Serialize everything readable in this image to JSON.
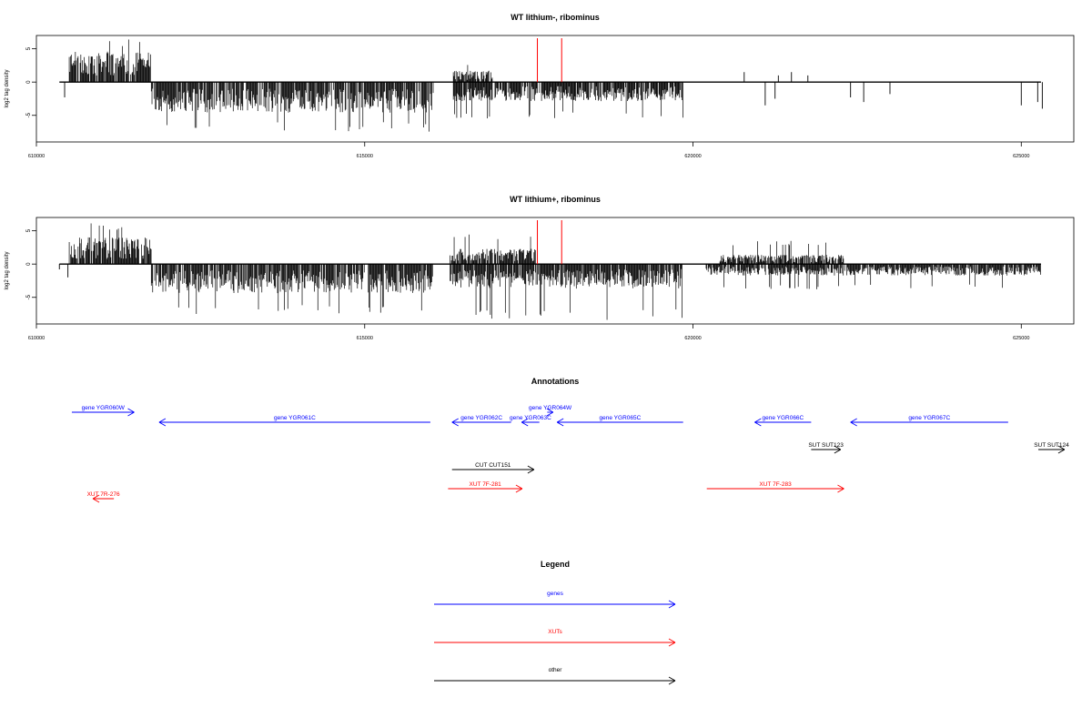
{
  "panel1_title": "WT lithium-, ribominus",
  "panel2_title": "WT lithium+, ribominus",
  "annotations_title": "Annotations",
  "legend_title": "Legend",
  "ylabel": "log2 tag density",
  "colors": {
    "gene": "#0000ff",
    "xut": "#ff0000",
    "other": "#000000",
    "marker": "#ff0000"
  },
  "chart_data": [
    {
      "type": "bar",
      "title": "WT lithium-, ribominus",
      "xlabel": "",
      "ylabel": "log2 tag density",
      "xlim": [
        610000,
        625800
      ],
      "ylim": [
        -9,
        7
      ],
      "x_ticks": [
        610000,
        615000,
        620000,
        625000
      ],
      "y_ticks": [
        -5,
        0,
        5
      ],
      "grid": false,
      "marker_lines_x": [
        617630,
        618000
      ],
      "signal_regions": [
        {
          "start": 610500,
          "end": 611750,
          "strand": "+",
          "typical_log2": 4,
          "max_log2": 6.6
        },
        {
          "start": 611750,
          "end": 616050,
          "strand": "-",
          "typical_log2": -4,
          "min_log2": -7.5
        },
        {
          "start": 616350,
          "end": 616950,
          "strand": "+",
          "typical_log2": 1.5,
          "max_log2": 3.2
        },
        {
          "start": 616350,
          "end": 617600,
          "strand": "-",
          "typical_log2": -2.5,
          "min_log2": -5.5
        },
        {
          "start": 617600,
          "end": 619850,
          "strand": "-",
          "typical_log2": -2.5,
          "min_log2": -5.5
        }
      ],
      "isolated_peaks": [
        {
          "x": 610430,
          "y": -2.3
        },
        {
          "x": 620780,
          "y": 1.5
        },
        {
          "x": 621100,
          "y": -3.5
        },
        {
          "x": 621250,
          "y": -2.5
        },
        {
          "x": 621300,
          "y": 1.0
        },
        {
          "x": 621500,
          "y": 1.5
        },
        {
          "x": 621750,
          "y": 1.0
        },
        {
          "x": 622400,
          "y": -2.3
        },
        {
          "x": 622600,
          "y": -3.0
        },
        {
          "x": 623000,
          "y": -1.8
        },
        {
          "x": 625000,
          "y": -3.5
        },
        {
          "x": 625250,
          "y": -3.0
        },
        {
          "x": 625320,
          "y": -4.0
        }
      ]
    },
    {
      "type": "bar",
      "title": "WT lithium+, ribominus",
      "xlabel": "",
      "ylabel": "log2 tag density",
      "xlim": [
        610000,
        625800
      ],
      "ylim": [
        -9,
        7
      ],
      "x_ticks": [
        610000,
        615000,
        620000,
        625000
      ],
      "y_ticks": [
        -5,
        0,
        5
      ],
      "grid": false,
      "marker_lines_x": [
        617630,
        618000
      ],
      "signal_regions": [
        {
          "start": 610500,
          "end": 611750,
          "strand": "+",
          "typical_log2": 3.5,
          "max_log2": 6.2
        },
        {
          "start": 611750,
          "end": 616050,
          "strand": "-",
          "typical_log2": -3.8,
          "min_log2": -7.5
        },
        {
          "start": 616300,
          "end": 617600,
          "strand": "+",
          "typical_log2": 2.0,
          "max_log2": 4.5
        },
        {
          "start": 616300,
          "end": 619850,
          "strand": "-",
          "typical_log2": -3.0,
          "min_log2": -8.5
        },
        {
          "start": 620400,
          "end": 622300,
          "strand": "+",
          "typical_log2": 1.2,
          "max_log2": 3.5
        },
        {
          "start": 620200,
          "end": 625300,
          "strand": "-",
          "typical_log2": -1.5,
          "min_log2": -3.8
        }
      ],
      "isolated_peaks": [
        {
          "x": 610350,
          "y": -0.8
        },
        {
          "x": 610480,
          "y": -2.0
        }
      ]
    }
  ],
  "annotations": {
    "xlim": [
      610000,
      625800
    ],
    "features": [
      {
        "label": "gene YGR060W",
        "type": "gene",
        "start": 610540,
        "end": 611490,
        "strand": "+",
        "row": 1
      },
      {
        "label": "gene YGR061C",
        "type": "gene",
        "start": 611870,
        "end": 616000,
        "strand": "-",
        "row": 2
      },
      {
        "label": "gene YGR062C",
        "type": "gene",
        "start": 616330,
        "end": 617230,
        "strand": "-",
        "row": 2
      },
      {
        "label": "gene YGR063C",
        "type": "gene",
        "start": 617390,
        "end": 617660,
        "strand": "-",
        "row": 2
      },
      {
        "label": "gene YGR064W",
        "type": "gene",
        "start": 617780,
        "end": 617870,
        "strand": "+",
        "row": 1
      },
      {
        "label": "gene YGR065C",
        "type": "gene",
        "start": 617930,
        "end": 619850,
        "strand": "-",
        "row": 2
      },
      {
        "label": "gene YGR066C",
        "type": "gene",
        "start": 620940,
        "end": 621800,
        "strand": "-",
        "row": 2
      },
      {
        "label": "gene YGR067C",
        "type": "gene",
        "start": 622400,
        "end": 624800,
        "strand": "-",
        "row": 2
      },
      {
        "label": "SUT SUT123",
        "type": "other",
        "start": 621800,
        "end": 622250,
        "strand": "+",
        "row": 4
      },
      {
        "label": "SUT SUT124",
        "type": "other",
        "start": 625260,
        "end": 625660,
        "strand": "+",
        "row": 4
      },
      {
        "label": "CUT CUT151",
        "type": "other",
        "start": 616330,
        "end": 617580,
        "strand": "+",
        "row": 5
      },
      {
        "label": "XUT 7F-281",
        "type": "xut",
        "start": 616270,
        "end": 617400,
        "strand": "+",
        "row": 6
      },
      {
        "label": "XUT 7F-283",
        "type": "xut",
        "start": 620210,
        "end": 622300,
        "strand": "+",
        "row": 6
      },
      {
        "label": "XUT 7R-276",
        "type": "xut",
        "start": 610860,
        "end": 611180,
        "strand": "-",
        "row": 7
      }
    ]
  },
  "legend": [
    {
      "label": "genes",
      "type": "gene"
    },
    {
      "label": "XUTs",
      "type": "xut"
    },
    {
      "label": "other",
      "type": "other"
    }
  ]
}
